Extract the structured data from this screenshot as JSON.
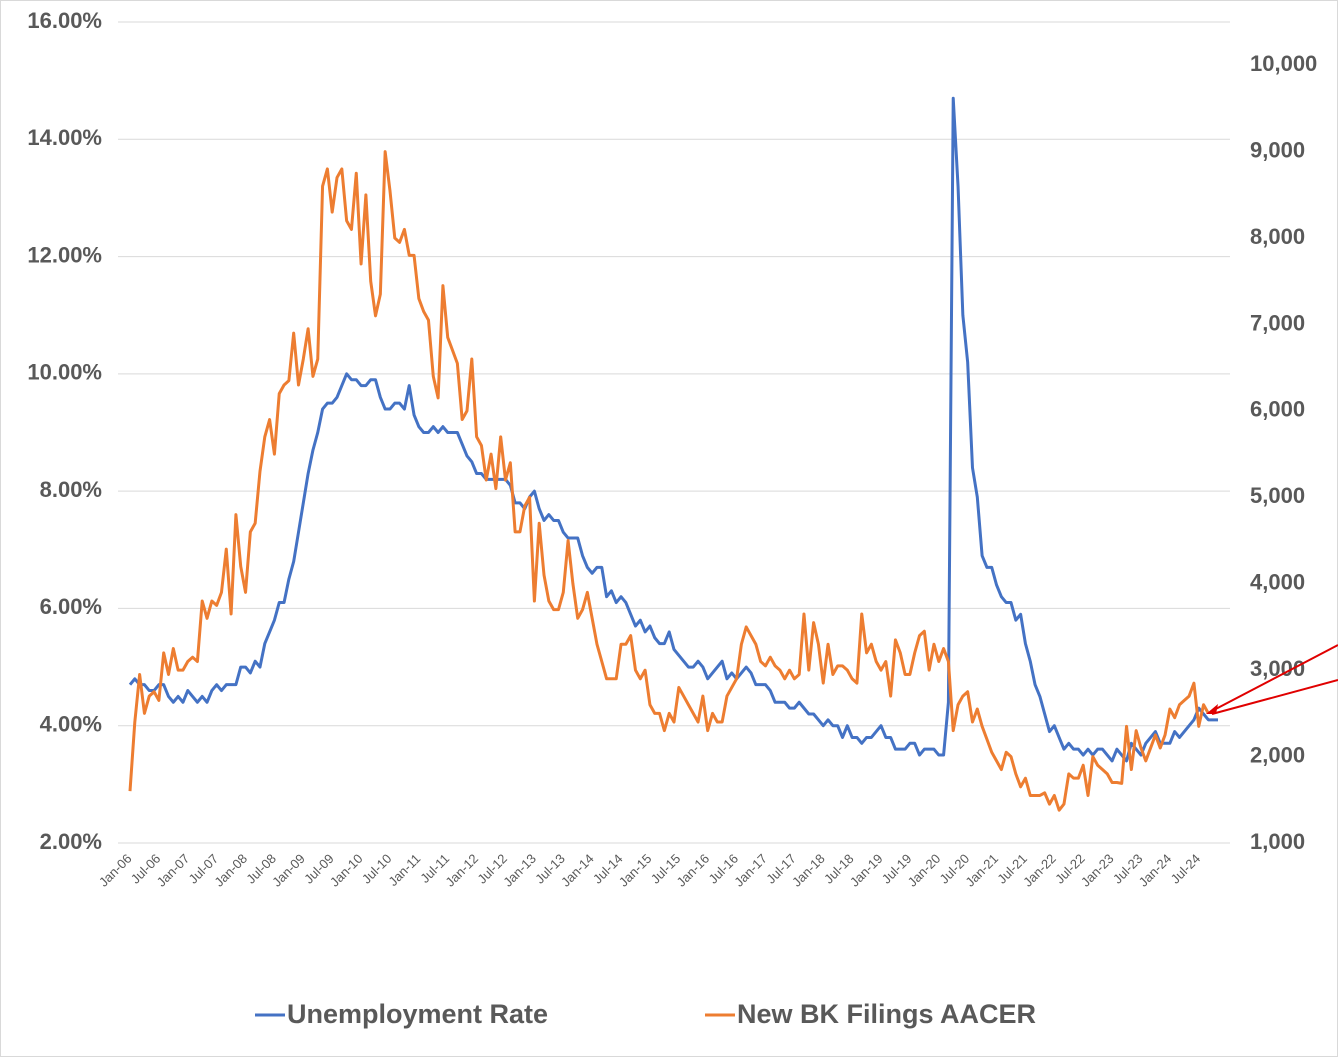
{
  "chart_data": {
    "type": "line",
    "categories": [
      "Jan-06",
      null,
      null,
      null,
      null,
      null,
      "Jul-06",
      null,
      null,
      null,
      null,
      null,
      "Jan-07",
      null,
      null,
      null,
      null,
      null,
      "Jul-07",
      null,
      null,
      null,
      null,
      null,
      "Jan-08",
      null,
      null,
      null,
      null,
      null,
      "Jul-08",
      null,
      null,
      null,
      null,
      null,
      "Jan-09",
      null,
      null,
      null,
      null,
      null,
      "Jul-09",
      null,
      null,
      null,
      null,
      null,
      "Jan-10",
      null,
      null,
      null,
      null,
      null,
      "Jul-10",
      null,
      null,
      null,
      null,
      null,
      "Jan-11",
      null,
      null,
      null,
      null,
      null,
      "Jul-11",
      null,
      null,
      null,
      null,
      null,
      "Jan-12",
      null,
      null,
      null,
      null,
      null,
      "Jul-12",
      null,
      null,
      null,
      null,
      null,
      "Jan-13",
      null,
      null,
      null,
      null,
      null,
      "Jul-13",
      null,
      null,
      null,
      null,
      null,
      "Jan-14",
      null,
      null,
      null,
      null,
      null,
      "Jul-14",
      null,
      null,
      null,
      null,
      null,
      "Jan-15",
      null,
      null,
      null,
      null,
      null,
      "Jul-15",
      null,
      null,
      null,
      null,
      null,
      "Jan-16",
      null,
      null,
      null,
      null,
      null,
      "Jul-16",
      null,
      null,
      null,
      null,
      null,
      "Jan-17",
      null,
      null,
      null,
      null,
      null,
      "Jul-17",
      null,
      null,
      null,
      null,
      null,
      "Jan-18",
      null,
      null,
      null,
      null,
      null,
      "Jul-18",
      null,
      null,
      null,
      null,
      null,
      "Jan-19",
      null,
      null,
      null,
      null,
      null,
      "Jul-19",
      null,
      null,
      null,
      null,
      null,
      "Jan-20",
      null,
      null,
      null,
      null,
      null,
      "Jul-20",
      null,
      null,
      null,
      null,
      null,
      "Jan-21",
      null,
      null,
      null,
      null,
      null,
      "Jul-21",
      null,
      null,
      null,
      null,
      null,
      "Jan-22",
      null,
      null,
      null,
      null,
      null,
      "Jul-22",
      null,
      null,
      null,
      null,
      null,
      "Jan-23",
      null,
      null,
      null,
      null,
      null,
      "Jul-23",
      null,
      null,
      null,
      null,
      null,
      "Jan-24",
      null,
      null,
      null,
      null,
      null,
      "Jul-24",
      null,
      null,
      null,
      null
    ],
    "series": [
      {
        "name": "Unemployment Rate",
        "color": "#4472c4",
        "axis": "y",
        "values": [
          4.7,
          4.8,
          4.7,
          4.7,
          4.6,
          4.6,
          4.7,
          4.7,
          4.5,
          4.4,
          4.5,
          4.4,
          4.6,
          4.5,
          4.4,
          4.5,
          4.4,
          4.6,
          4.7,
          4.6,
          4.7,
          4.7,
          4.7,
          5.0,
          5.0,
          4.9,
          5.1,
          5.0,
          5.4,
          5.6,
          5.8,
          6.1,
          6.1,
          6.5,
          6.8,
          7.3,
          7.8,
          8.3,
          8.7,
          9.0,
          9.4,
          9.5,
          9.5,
          9.6,
          9.8,
          10.0,
          9.9,
          9.9,
          9.8,
          9.8,
          9.9,
          9.9,
          9.6,
          9.4,
          9.4,
          9.5,
          9.5,
          9.4,
          9.8,
          9.3,
          9.1,
          9.0,
          9.0,
          9.1,
          9.0,
          9.1,
          9.0,
          9.0,
          9.0,
          8.8,
          8.6,
          8.5,
          8.3,
          8.3,
          8.2,
          8.2,
          8.2,
          8.2,
          8.2,
          8.1,
          7.8,
          7.8,
          7.7,
          7.9,
          8.0,
          7.7,
          7.5,
          7.6,
          7.5,
          7.5,
          7.3,
          7.2,
          7.2,
          7.2,
          6.9,
          6.7,
          6.6,
          6.7,
          6.7,
          6.2,
          6.3,
          6.1,
          6.2,
          6.1,
          5.9,
          5.7,
          5.8,
          5.6,
          5.7,
          5.5,
          5.4,
          5.4,
          5.6,
          5.3,
          5.2,
          5.1,
          5.0,
          5.0,
          5.1,
          5.0,
          4.8,
          4.9,
          5.0,
          5.1,
          4.8,
          4.9,
          4.8,
          4.9,
          5.0,
          4.9,
          4.7,
          4.7,
          4.7,
          4.6,
          4.4,
          4.4,
          4.4,
          4.3,
          4.3,
          4.4,
          4.3,
          4.2,
          4.2,
          4.1,
          4.0,
          4.1,
          4.0,
          4.0,
          3.8,
          4.0,
          3.8,
          3.8,
          3.7,
          3.8,
          3.8,
          3.9,
          4.0,
          3.8,
          3.8,
          3.6,
          3.6,
          3.6,
          3.7,
          3.7,
          3.5,
          3.6,
          3.6,
          3.6,
          3.5,
          3.5,
          4.4,
          14.7,
          13.2,
          11.0,
          10.2,
          8.4,
          7.9,
          6.9,
          6.7,
          6.7,
          6.4,
          6.2,
          6.1,
          6.1,
          5.8,
          5.9,
          5.4,
          5.1,
          4.7,
          4.5,
          4.2,
          3.9,
          4.0,
          3.8,
          3.6,
          3.7,
          3.6,
          3.6,
          3.5,
          3.6,
          3.5,
          3.6,
          3.6,
          3.5,
          3.4,
          3.6,
          3.5,
          3.4,
          3.7,
          3.6,
          3.5,
          3.7,
          3.8,
          3.9,
          3.7,
          3.7,
          3.7,
          3.9,
          3.8,
          3.9,
          4.0,
          4.1,
          4.3,
          4.2,
          4.1,
          4.1,
          4.1
        ]
      },
      {
        "name": "New BK Filings AACER",
        "color": "#ed7d31",
        "axis": "y2",
        "values": [
          1600,
          2400,
          2950,
          2500,
          2700,
          2750,
          2650,
          3200,
          2950,
          3250,
          3000,
          3000,
          3100,
          3150,
          3100,
          3800,
          3600,
          3800,
          3750,
          3900,
          4400,
          3650,
          4800,
          4200,
          3900,
          4600,
          4700,
          5300,
          5700,
          5900,
          5500,
          6200,
          6300,
          6350,
          6900,
          6300,
          6600,
          6950,
          6400,
          6600,
          8600,
          8800,
          8300,
          8700,
          8800,
          8200,
          8100,
          8750,
          7700,
          8500,
          7500,
          7100,
          7350,
          9000,
          8550,
          8000,
          7950,
          8100,
          7800,
          7800,
          7300,
          7150,
          7050,
          6400,
          6150,
          7450,
          6850,
          6700,
          6550,
          5900,
          6000,
          6600,
          5700,
          5600,
          5200,
          5500,
          5100,
          5700,
          5200,
          5400,
          4600,
          4600,
          4900,
          5000,
          3800,
          4700,
          4100,
          3800,
          3700,
          3700,
          3900,
          4500,
          4000,
          3600,
          3700,
          3900,
          3600,
          3300,
          3100,
          2900,
          2900,
          2900,
          3300,
          3300,
          3400,
          3000,
          2900,
          3000,
          2600,
          2500,
          2500,
          2300,
          2500,
          2400,
          2800,
          2700,
          2600,
          2500,
          2400,
          2700,
          2300,
          2500,
          2400,
          2400,
          2700,
          2800,
          2900,
          3300,
          3500,
          3400,
          3300,
          3100,
          3050,
          3150,
          3050,
          3000,
          2900,
          3000,
          2900,
          2950,
          3650,
          3000,
          3550,
          3300,
          2850,
          3300,
          2950,
          3050,
          3050,
          3000,
          2900,
          2850,
          3650,
          3200,
          3300,
          3100,
          3000,
          3100,
          2700,
          3350,
          3200,
          2950,
          2950,
          3200,
          3400,
          3450,
          3000,
          3300,
          3100,
          3250,
          3100,
          2300,
          2600,
          2700,
          2750,
          2400,
          2550,
          2350,
          2200,
          2050,
          1950,
          1850,
          2050,
          2000,
          1800,
          1650,
          1750,
          1550,
          1550,
          1550,
          1580,
          1450,
          1550,
          1380,
          1450,
          1800,
          1750,
          1750,
          1900,
          1550,
          2000,
          1900,
          1850,
          1800,
          1700,
          1700,
          1690,
          2350,
          1850,
          2300,
          2100,
          1950,
          2100,
          2250,
          2100,
          2250,
          2550,
          2450,
          2600,
          2650,
          2700,
          2850,
          2350,
          2600,
          2500,
          null,
          null
        ]
      }
    ],
    "ylim": [
      2,
      16
    ],
    "yticks": [
      {
        "value": 2,
        "label": "2.00%"
      },
      {
        "value": 4,
        "label": "4.00%"
      },
      {
        "value": 6,
        "label": "6.00%"
      },
      {
        "value": 8,
        "label": "8.00%"
      },
      {
        "value": 10,
        "label": "10.00%"
      },
      {
        "value": 12,
        "label": "12.00%"
      },
      {
        "value": 14,
        "label": "14.00%"
      },
      {
        "value": 16,
        "label": "16.00%"
      }
    ],
    "y2lim": [
      1000,
      10500
    ],
    "y2ticks": [
      {
        "value": 1000,
        "label": "1,000"
      },
      {
        "value": 2000,
        "label": "2,000"
      },
      {
        "value": 3000,
        "label": "3,000"
      },
      {
        "value": 4000,
        "label": "4,000"
      },
      {
        "value": 5000,
        "label": "5,000"
      },
      {
        "value": 6000,
        "label": "6,000"
      },
      {
        "value": 7000,
        "label": "7,000"
      },
      {
        "value": 8000,
        "label": "8,000"
      },
      {
        "value": 9000,
        "label": "9,000"
      },
      {
        "value": 10000,
        "label": "10,000"
      }
    ],
    "grid": true
  }
}
